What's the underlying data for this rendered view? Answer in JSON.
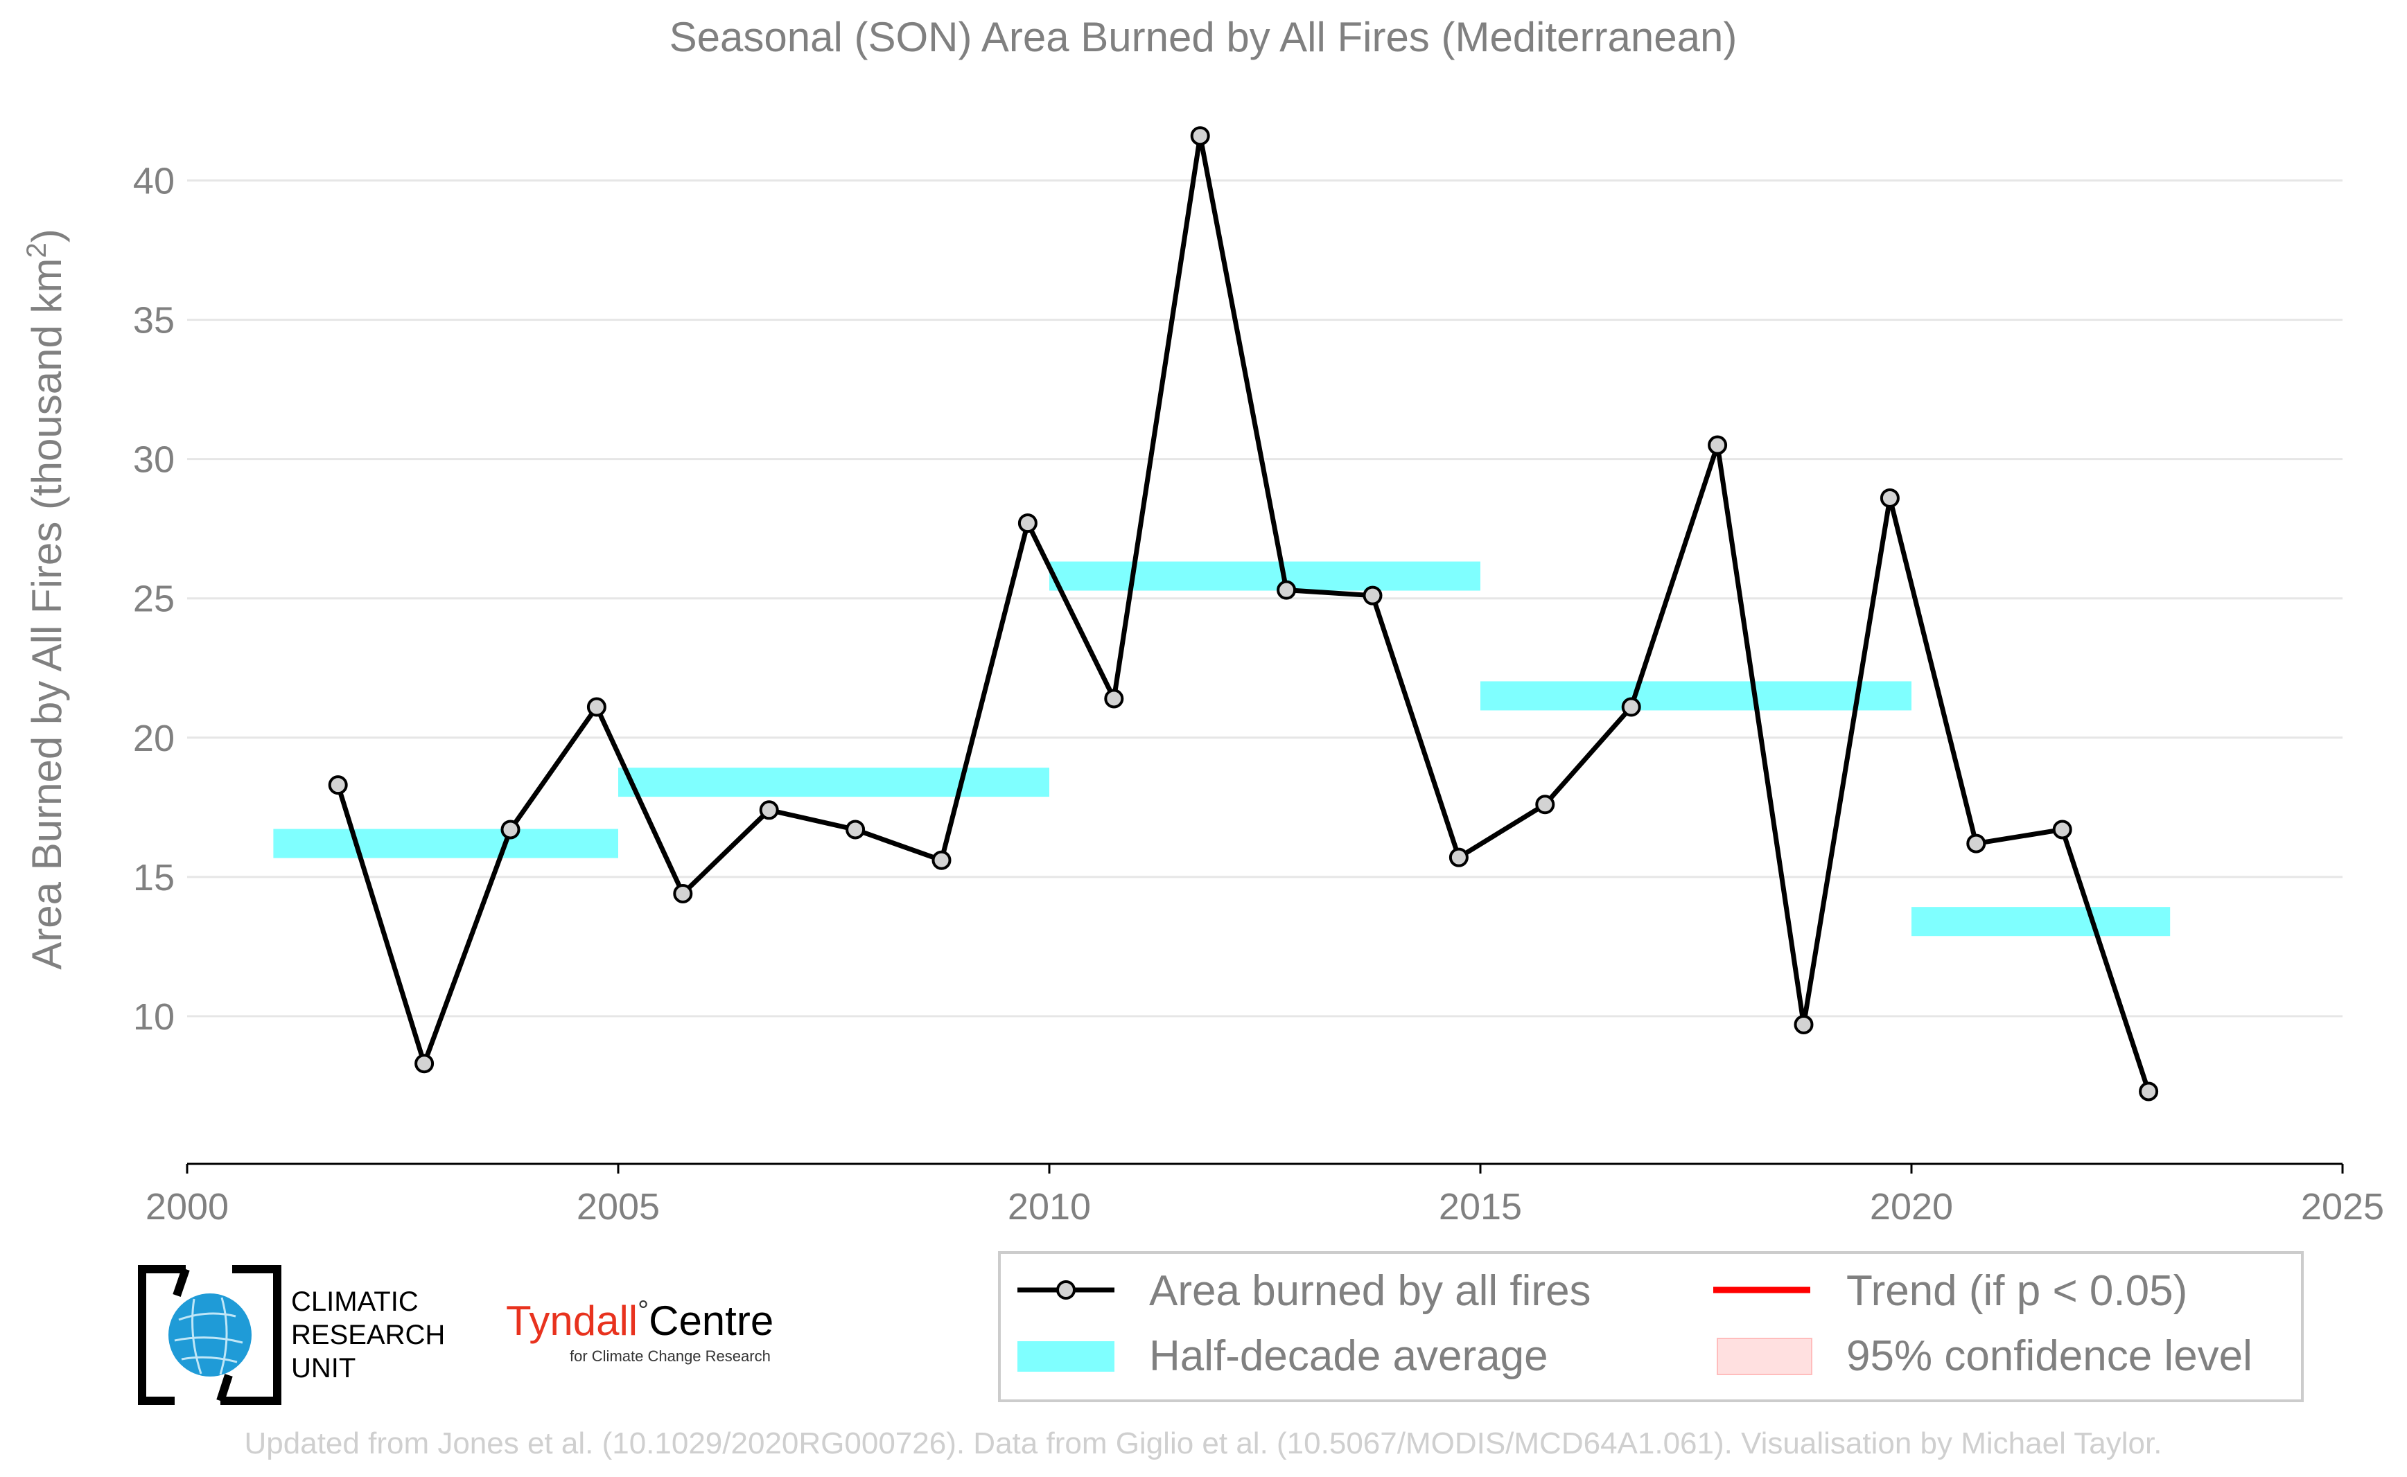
{
  "chart_data": {
    "type": "line",
    "title": "Seasonal (SON) Area Burned by All Fires (Mediterranean)",
    "ylabel_main": "Area Burned by All Fires (thousand km",
    "ylabel_sup": "2",
    "ylabel_end": ")",
    "xlim": [
      2000,
      2025
    ],
    "ylim": [
      4.7,
      42.5
    ],
    "x_ticks": [
      2000,
      2005,
      2010,
      2015,
      2020,
      2025
    ],
    "y_ticks": [
      10,
      15,
      20,
      25,
      30,
      35,
      40
    ],
    "grid": true,
    "series": [
      {
        "name": "Area burned by all fires",
        "color": "#000000",
        "marker_fill": "#d3d3d3",
        "x": [
          2001.75,
          2002.75,
          2003.75,
          2004.75,
          2005.75,
          2006.75,
          2007.75,
          2008.75,
          2009.75,
          2010.75,
          2011.75,
          2012.75,
          2013.75,
          2014.75,
          2015.75,
          2016.75,
          2017.75,
          2018.75,
          2019.75,
          2020.75,
          2021.75,
          2022.75
        ],
        "y": [
          18.3,
          8.3,
          16.7,
          21.1,
          14.4,
          17.4,
          16.7,
          15.6,
          27.7,
          21.4,
          41.6,
          25.3,
          25.1,
          15.7,
          17.6,
          21.1,
          30.5,
          9.7,
          28.6,
          16.2,
          16.7,
          7.3
        ]
      }
    ],
    "half_decade_averages": [
      {
        "x_start": 2001,
        "x_end": 2005,
        "value": 16.2
      },
      {
        "x_start": 2005,
        "x_end": 2010,
        "value": 18.4
      },
      {
        "x_start": 2010,
        "x_end": 2015,
        "value": 25.8
      },
      {
        "x_start": 2015,
        "x_end": 2020,
        "value": 21.5
      },
      {
        "x_start": 2020,
        "x_end": 2023,
        "value": 13.4
      }
    ],
    "half_decade_color": "#7fffff",
    "trend_color": "#ff0000",
    "confidence_color": "#ffe0e0",
    "legend": {
      "placement": "bottom-right",
      "items": [
        {
          "label": "Area burned by all fires",
          "kind": "line-marker"
        },
        {
          "label": "Trend (if p < 0.05)",
          "kind": "line"
        },
        {
          "label": "Half-decade average",
          "kind": "band"
        },
        {
          "label": "95% confidence level",
          "kind": "patch"
        }
      ]
    }
  },
  "logos": {
    "cru_line1": "CLIMATIC",
    "cru_line2": "RESEARCH",
    "cru_line3": "UNIT",
    "tyndall_main": "Tyndall",
    "tyndall_degree": "°",
    "tyndall_centre": "Centre",
    "tyndall_sub": "for Climate Change Research"
  },
  "footer": "Updated from Jones et al. (10.1029/2020RG000726). Data from Giglio et al. (10.5067/MODIS/MCD64A1.061). Visualisation by Michael Taylor."
}
